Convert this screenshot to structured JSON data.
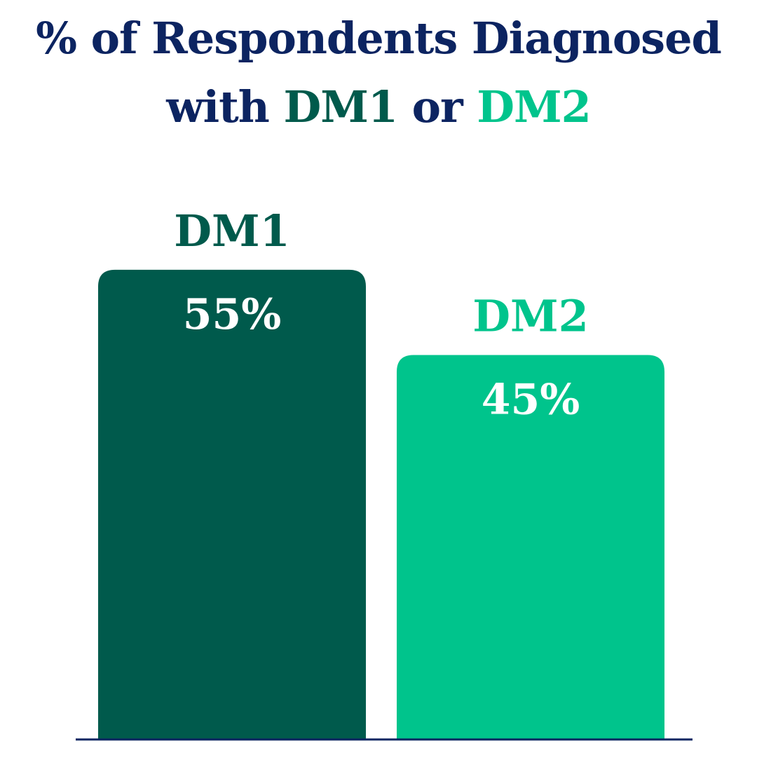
{
  "title": {
    "line1": "% of Respondents Diagnosed",
    "line2_prefix": "with ",
    "line2_dm1": "DM1",
    "line2_mid": " or ",
    "line2_dm2": "DM2"
  },
  "colors": {
    "title": "#0c2461",
    "dm1": "#005a4c",
    "dm2": "#00c48c",
    "value_text": "#ffffff",
    "baseline": "#0c2461"
  },
  "chart_data": {
    "type": "bar",
    "categories": [
      "DM1",
      "DM2"
    ],
    "values": [
      55,
      45
    ],
    "value_labels": [
      "55%",
      "45%"
    ],
    "title": "% of Respondents Diagnosed with DM1 or DM2",
    "xlabel": "",
    "ylabel": "",
    "ylim": [
      0,
      56.3
    ],
    "grid": false,
    "legend": "none"
  }
}
